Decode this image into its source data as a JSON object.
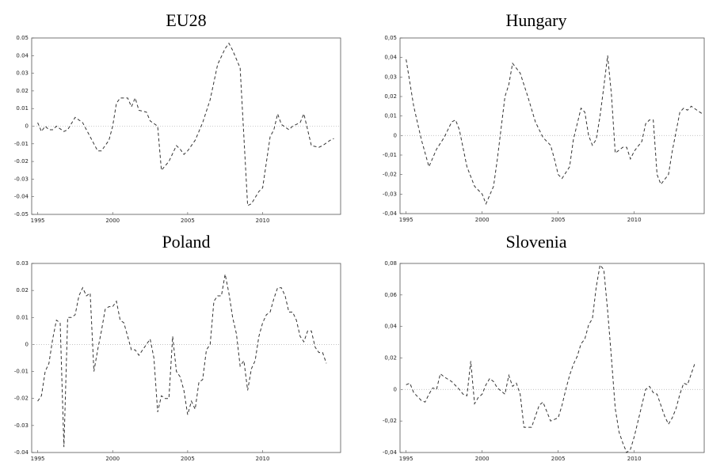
{
  "chart_data": [
    {
      "type": "line",
      "title": "EU28",
      "color": "#333333",
      "linestyle": "dashed",
      "hline": 0,
      "xlim": [
        1994.6,
        2015.2
      ],
      "xticks": [
        1995,
        2000,
        2005,
        2010
      ],
      "ylim": [
        -0.05,
        0.05
      ],
      "yticks": [
        -0.05,
        -0.04,
        -0.03,
        -0.02,
        -0.01,
        0,
        0.01,
        0.02,
        0.03,
        0.04,
        0.05
      ],
      "x": [
        1995,
        1995.25,
        1995.5,
        1995.75,
        1996,
        1996.25,
        1996.75,
        1997,
        1997.5,
        1998,
        1998.5,
        1999,
        1999.25,
        1999.75,
        2000,
        2000.25,
        2000.5,
        2001,
        2001.25,
        2001.5,
        2001.75,
        2002.25,
        2002.5,
        2003,
        2003.25,
        2003.75,
        2004.25,
        2004.5,
        2004.75,
        2005,
        2005.5,
        2006,
        2006.5,
        2007,
        2007.5,
        2007.75,
        2008,
        2008.5,
        2009,
        2009.25,
        2009.75,
        2010,
        2010.5,
        2010.75,
        2011,
        2011.25,
        2011.75,
        2012,
        2012.5,
        2012.75,
        2013.25,
        2013.75,
        2014,
        2014.5,
        2014.75
      ],
      "values": [
        0.002,
        -0.003,
        0.0,
        -0.002,
        -0.002,
        0.0,
        -0.003,
        -0.002,
        0.005,
        0.002,
        -0.006,
        -0.014,
        -0.014,
        -0.008,
        0.0,
        0.013,
        0.016,
        0.016,
        0.011,
        0.016,
        0.009,
        0.008,
        0.003,
        0.0,
        -0.025,
        -0.02,
        -0.011,
        -0.013,
        -0.016,
        -0.014,
        -0.008,
        0.002,
        0.015,
        0.035,
        0.044,
        0.047,
        0.043,
        0.033,
        -0.045,
        -0.044,
        -0.037,
        -0.035,
        -0.006,
        -0.002,
        0.007,
        0.001,
        -0.002,
        0.0,
        0.002,
        0.007,
        -0.011,
        -0.012,
        -0.011,
        -0.008,
        -0.007
      ]
    },
    {
      "type": "line",
      "title": "Hungary",
      "color": "#333333",
      "linestyle": "dashed",
      "hline": 0,
      "xlim": [
        1994.6,
        2014.6
      ],
      "xticks": [
        1995,
        2000,
        2005,
        2010
      ],
      "ylim": [
        -0.04,
        0.05
      ],
      "yticks": [
        {
          "value": -0.04,
          "label": "-0,04"
        },
        {
          "value": -0.03,
          "label": "-0,03"
        },
        {
          "value": -0.02,
          "label": "-0,02"
        },
        {
          "value": -0.01,
          "label": "-0,01"
        },
        0,
        {
          "value": 0.01,
          "label": "0,01"
        },
        {
          "value": 0.02,
          "label": "0,02"
        },
        {
          "value": 0.03,
          "label": "0,03"
        },
        {
          "value": 0.04,
          "label": "0,04"
        },
        {
          "value": 0.05,
          "label": "0,05"
        }
      ],
      "x": [
        1995,
        1995.5,
        1996,
        1996.5,
        1997,
        1997.5,
        1998,
        1998.25,
        1998.5,
        1999,
        1999.5,
        2000,
        2000.25,
        2000.75,
        2001,
        2001.5,
        2001.75,
        2002,
        2002.5,
        2003,
        2003.5,
        2004,
        2004.5,
        2004.75,
        2005,
        2005.25,
        2005.75,
        2006,
        2006.5,
        2006.75,
        2007,
        2007.25,
        2007.5,
        2007.75,
        2008,
        2008.25,
        2008.5,
        2008.75,
        2009.25,
        2009.5,
        2009.75,
        2010,
        2010.5,
        2010.75,
        2011,
        2011.25,
        2011.5,
        2011.75,
        2012.25,
        2012.5,
        2013,
        2013.25,
        2013.5,
        2013.75,
        2014.5
      ],
      "values": [
        0.039,
        0.015,
        -0.002,
        -0.016,
        -0.007,
        -0.001,
        0.007,
        0.008,
        0.003,
        -0.016,
        -0.026,
        -0.03,
        -0.035,
        -0.026,
        -0.012,
        0.02,
        0.026,
        0.037,
        0.032,
        0.02,
        0.007,
        -0.001,
        -0.005,
        -0.012,
        -0.02,
        -0.022,
        -0.016,
        -0.002,
        0.014,
        0.012,
        0.0,
        -0.005,
        -0.002,
        0.01,
        0.025,
        0.041,
        0.021,
        -0.009,
        -0.006,
        -0.006,
        -0.012,
        -0.008,
        -0.003,
        0.006,
        0.008,
        0.008,
        -0.02,
        -0.025,
        -0.02,
        -0.008,
        0.012,
        0.014,
        0.013,
        0.015,
        0.011
      ]
    },
    {
      "type": "line",
      "title": "Poland",
      "color": "#333333",
      "linestyle": "dashed",
      "hline": 0,
      "xlim": [
        1994.6,
        2015.2
      ],
      "xticks": [
        1995,
        2000,
        2005,
        2010
      ],
      "ylim": [
        -0.04,
        0.03
      ],
      "yticks": [
        -0.04,
        -0.03,
        -0.02,
        -0.01,
        0,
        0.01,
        0.02,
        0.03
      ],
      "x": [
        1995,
        1995.25,
        1995.5,
        1995.75,
        1996,
        1996.25,
        1996.5,
        1996.75,
        1997,
        1997.25,
        1997.5,
        1997.75,
        1998,
        1998.25,
        1998.5,
        1998.75,
        1999,
        1999.25,
        1999.5,
        1999.75,
        2000,
        2000.25,
        2000.5,
        2000.75,
        2001,
        2001.25,
        2001.5,
        2001.75,
        2002,
        2002.25,
        2002.5,
        2002.75,
        2003,
        2003.25,
        2003.5,
        2003.75,
        2004,
        2004.25,
        2004.5,
        2004.75,
        2005,
        2005.25,
        2005.5,
        2005.75,
        2006,
        2006.25,
        2006.5,
        2006.75,
        2007,
        2007.25,
        2007.5,
        2007.75,
        2008,
        2008.25,
        2008.5,
        2008.75,
        2009,
        2009.25,
        2009.5,
        2009.75,
        2010,
        2010.25,
        2010.5,
        2010.75,
        2011,
        2011.25,
        2011.5,
        2011.75,
        2012,
        2012.25,
        2012.5,
        2012.75,
        2013,
        2013.25,
        2013.5,
        2013.75,
        2014,
        2014.25
      ],
      "values": [
        -0.021,
        -0.019,
        -0.01,
        -0.007,
        0.002,
        0.009,
        0.008,
        -0.038,
        0.01,
        0.01,
        0.011,
        0.018,
        0.021,
        0.018,
        0.019,
        -0.01,
        -0.002,
        0.005,
        0.013,
        0.014,
        0.014,
        0.016,
        0.009,
        0.008,
        0.003,
        -0.002,
        -0.002,
        -0.004,
        -0.002,
        0.0,
        0.002,
        -0.005,
        -0.025,
        -0.019,
        -0.02,
        -0.02,
        0.003,
        -0.01,
        -0.012,
        -0.017,
        -0.026,
        -0.021,
        -0.024,
        -0.014,
        -0.013,
        -0.002,
        0.0,
        0.016,
        0.018,
        0.018,
        0.026,
        0.019,
        0.01,
        0.004,
        -0.008,
        -0.006,
        -0.017,
        -0.009,
        -0.006,
        0.003,
        0.008,
        0.011,
        0.012,
        0.017,
        0.021,
        0.021,
        0.018,
        0.012,
        0.012,
        0.009,
        0.003,
        0.001,
        0.005,
        0.005,
        -0.001,
        -0.003,
        -0.003,
        -0.007
      ]
    },
    {
      "type": "line",
      "title": "Slovenia",
      "color": "#333333",
      "linestyle": "dashed",
      "hline": 0,
      "xlim": [
        1994.6,
        2014.6
      ],
      "xticks": [
        1995,
        2000,
        2005,
        2010
      ],
      "ylim": [
        -0.04,
        0.08
      ],
      "yticks": [
        {
          "value": -0.04,
          "label": "-0,04"
        },
        {
          "value": -0.02,
          "label": "-0,02"
        },
        0,
        {
          "value": 0.02,
          "label": "0,02"
        },
        {
          "value": 0.04,
          "label": "0,04"
        },
        {
          "value": 0.06,
          "label": "0,06"
        },
        {
          "value": 0.08,
          "label": "0,08"
        }
      ],
      "x": [
        1995,
        1995.25,
        1995.5,
        1996,
        1996.25,
        1996.5,
        1996.75,
        1997,
        1997.25,
        1997.5,
        1998,
        1998.5,
        1998.75,
        1999,
        1999.25,
        1999.5,
        1999.75,
        2000,
        2000.25,
        2000.5,
        2000.75,
        2001,
        2001.5,
        2001.75,
        2002,
        2002.25,
        2002.5,
        2002.75,
        2003.25,
        2003.75,
        2004,
        2004.25,
        2004.5,
        2004.75,
        2005,
        2005.25,
        2005.5,
        2005.75,
        2006,
        2006.25,
        2006.5,
        2006.75,
        2007,
        2007.25,
        2007.5,
        2007.75,
        2008,
        2008.25,
        2008.5,
        2008.75,
        2009,
        2009.25,
        2009.5,
        2009.75,
        2010,
        2010.25,
        2010.5,
        2010.75,
        2011,
        2011.25,
        2011.5,
        2011.75,
        2012,
        2012.25,
        2012.5,
        2012.75,
        2013,
        2013.25,
        2013.5,
        2013.75,
        2014
      ],
      "values": [
        0.003,
        0.004,
        -0.002,
        -0.007,
        -0.008,
        -0.003,
        0.001,
        0.0,
        0.01,
        0.008,
        0.005,
        0.0,
        -0.003,
        -0.004,
        0.018,
        -0.009,
        -0.005,
        -0.003,
        0.003,
        0.007,
        0.005,
        0.001,
        -0.003,
        0.009,
        0.002,
        0.004,
        -0.003,
        -0.024,
        -0.024,
        -0.01,
        -0.008,
        -0.014,
        -0.02,
        -0.019,
        -0.018,
        -0.01,
        0.0,
        0.009,
        0.016,
        0.021,
        0.029,
        0.032,
        0.041,
        0.045,
        0.065,
        0.079,
        0.076,
        0.05,
        0.02,
        -0.012,
        -0.027,
        -0.034,
        -0.04,
        -0.038,
        -0.03,
        -0.02,
        -0.01,
        0.0,
        0.002,
        -0.002,
        -0.003,
        -0.01,
        -0.017,
        -0.022,
        -0.018,
        -0.012,
        -0.003,
        0.004,
        0.003,
        0.01,
        0.017
      ]
    }
  ]
}
